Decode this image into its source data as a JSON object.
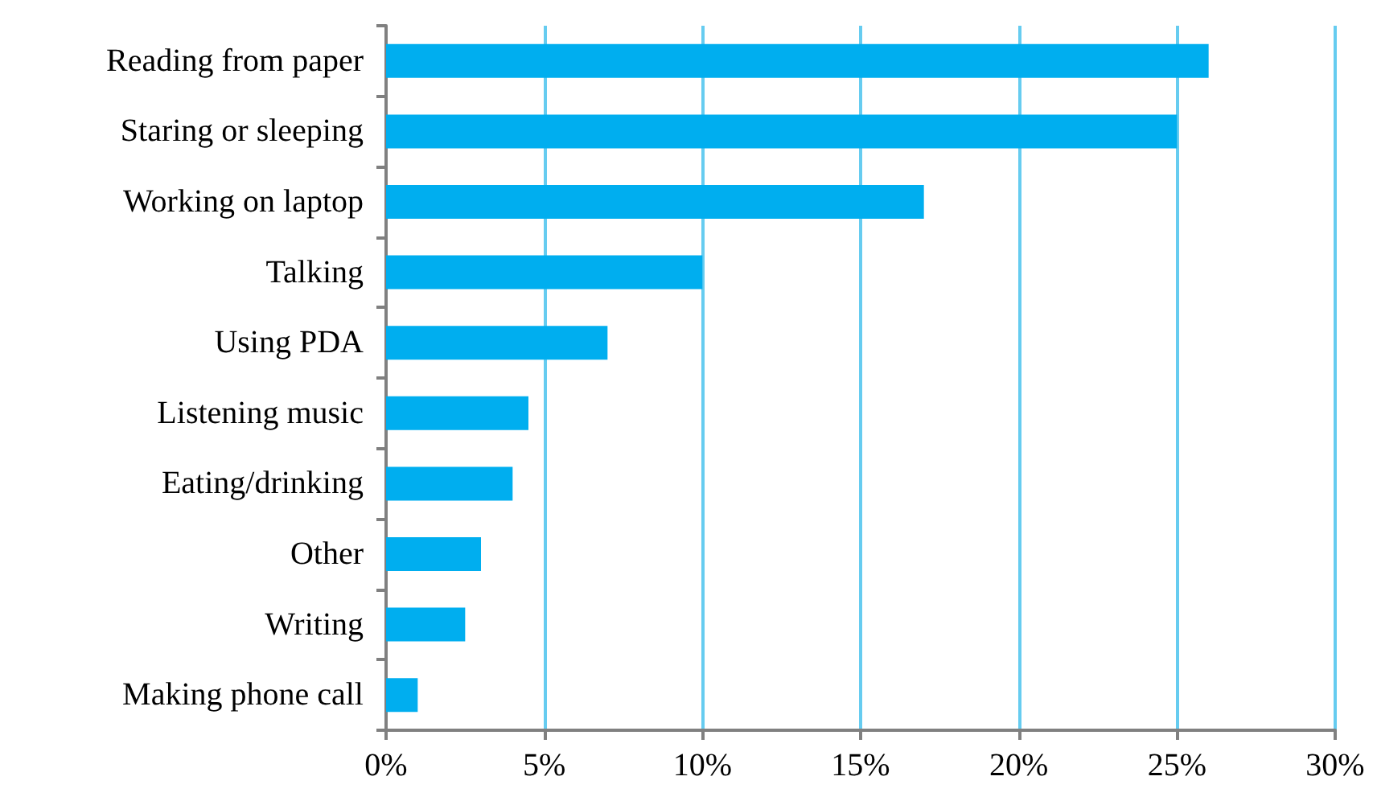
{
  "chart_data": {
    "type": "bar",
    "orientation": "horizontal",
    "categories": [
      "Reading from paper",
      "Staring or sleeping",
      "Working on laptop",
      "Talking",
      "Using PDA",
      "Listening music",
      "Eating/drinking",
      "Other",
      "Writing",
      "Making phone call"
    ],
    "values": [
      26,
      25,
      17,
      10,
      7,
      4.5,
      4,
      3,
      2.5,
      1
    ],
    "color": "#00aeef",
    "xlim": [
      0,
      30
    ],
    "xticks": [
      {
        "value": 0,
        "label": "0%"
      },
      {
        "value": 5,
        "label": "5%"
      },
      {
        "value": 10,
        "label": "10%"
      },
      {
        "value": 15,
        "label": "15%"
      },
      {
        "value": 20,
        "label": "20%"
      },
      {
        "value": 25,
        "label": "25%"
      },
      {
        "value": 30,
        "label": "30%"
      }
    ],
    "grid": "x"
  }
}
